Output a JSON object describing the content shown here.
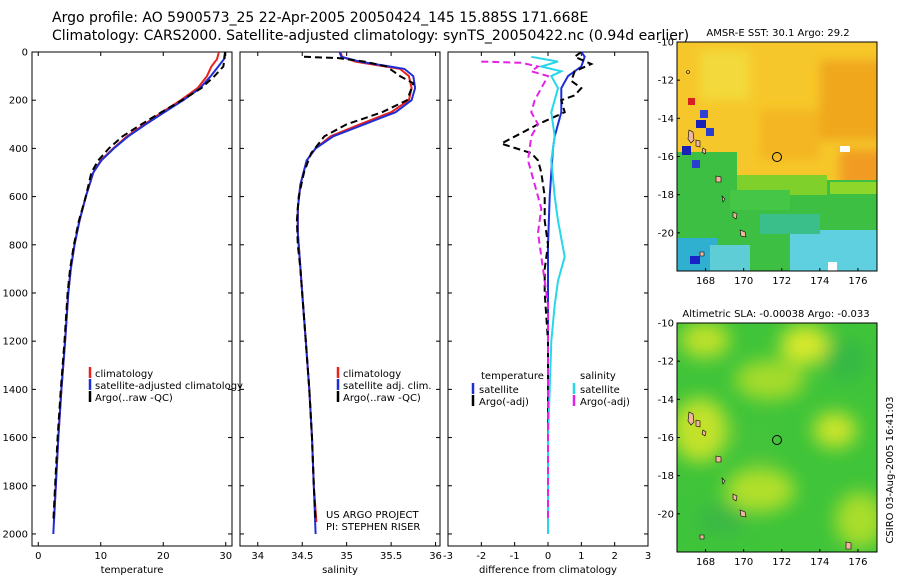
{
  "header": {
    "line1": "Argo profile: AO 5900573_25 22-Apr-2005 20050424_145 15.885S 171.668E",
    "line2": "Climatology: CARS2000. Satellite-adjusted climatology: synTS_20050422.nc (0.94d earlier)"
  },
  "footer": {
    "project": "US ARGO PROJECT",
    "pi": "PI: STEPHEN RISER",
    "stamp": "CSIRO 03-Aug-2005 16:41:03"
  },
  "colors": {
    "red": "#e8221c",
    "blue": "#1f2fd6",
    "black": "#000000",
    "cyan": "#27d7e9",
    "magenta": "#e421e6",
    "axis": "#000000"
  },
  "chart_data": [
    {
      "id": "temperature",
      "type": "line",
      "xlabel": "temperature",
      "ylabel": "",
      "xlim": [
        -1,
        31
      ],
      "ylim": [
        2050,
        0
      ],
      "xticks": [
        0,
        10,
        20,
        30
      ],
      "yticks": [
        0,
        200,
        400,
        600,
        800,
        1000,
        1200,
        1400,
        1600,
        1800,
        2000
      ],
      "legend": [
        "climatology",
        "satellite-adjusted climatology",
        "Argo(..raw -QC)"
      ],
      "series": [
        {
          "name": "climatology",
          "color": "red",
          "dash": false,
          "points": [
            [
              28.9,
              0
            ],
            [
              28.6,
              30
            ],
            [
              27.7,
              60
            ],
            [
              27.0,
              100
            ],
            [
              25.5,
              150
            ],
            [
              22.8,
              200
            ],
            [
              19.8,
              250
            ],
            [
              17.0,
              300
            ],
            [
              14.2,
              350
            ],
            [
              12.0,
              400
            ],
            [
              10.0,
              450
            ],
            [
              8.8,
              500
            ],
            [
              7.6,
              600
            ],
            [
              6.6,
              700
            ],
            [
              5.8,
              800
            ],
            [
              5.2,
              900
            ],
            [
              4.8,
              1000
            ],
            [
              4.3,
              1200
            ],
            [
              3.7,
              1400
            ],
            [
              3.2,
              1600
            ],
            [
              2.8,
              1800
            ],
            [
              2.5,
              1950
            ]
          ]
        },
        {
          "name": "satellite-adjusted climatology",
          "color": "blue",
          "dash": false,
          "points": [
            [
              29.9,
              0
            ],
            [
              29.7,
              30
            ],
            [
              28.8,
              60
            ],
            [
              27.6,
              100
            ],
            [
              25.9,
              150
            ],
            [
              23.2,
              200
            ],
            [
              20.2,
              250
            ],
            [
              17.2,
              300
            ],
            [
              14.4,
              350
            ],
            [
              12.1,
              400
            ],
            [
              10.1,
              450
            ],
            [
              8.8,
              500
            ],
            [
              7.6,
              600
            ],
            [
              6.6,
              700
            ],
            [
              5.8,
              800
            ],
            [
              5.2,
              900
            ],
            [
              4.8,
              1000
            ],
            [
              4.3,
              1200
            ],
            [
              3.7,
              1400
            ],
            [
              3.2,
              1600
            ],
            [
              2.8,
              1800
            ],
            [
              2.4,
              2000
            ]
          ]
        },
        {
          "name": "Argo(..raw -QC)",
          "color": "black",
          "dash": true,
          "points": [
            [
              29.9,
              0
            ],
            [
              29.8,
              30
            ],
            [
              29.6,
              60
            ],
            [
              28.2,
              100
            ],
            [
              26.1,
              150
            ],
            [
              23.0,
              200
            ],
            [
              19.7,
              250
            ],
            [
              16.5,
              300
            ],
            [
              13.5,
              350
            ],
            [
              11.3,
              400
            ],
            [
              9.6,
              450
            ],
            [
              8.5,
              500
            ],
            [
              7.6,
              600
            ],
            [
              6.5,
              700
            ],
            [
              5.7,
              800
            ],
            [
              5.1,
              900
            ],
            [
              4.7,
              1000
            ],
            [
              4.2,
              1200
            ],
            [
              3.6,
              1400
            ],
            [
              3.1,
              1600
            ],
            [
              2.7,
              1800
            ],
            [
              2.4,
              1950
            ]
          ]
        }
      ]
    },
    {
      "id": "salinity",
      "type": "line",
      "xlabel": "salinity",
      "ylabel": "",
      "xlim": [
        33.8,
        36.05
      ],
      "ylim": [
        2050,
        0
      ],
      "xticks": [
        34,
        34.5,
        35,
        35.5,
        36
      ],
      "yticks": [],
      "legend": [
        "climatology",
        "satellite adj. clim.",
        "Argo(..raw -QC)"
      ],
      "series": [
        {
          "name": "climatology",
          "color": "red",
          "dash": false,
          "points": [
            [
              34.93,
              0
            ],
            [
              34.95,
              20
            ],
            [
              35.1,
              40
            ],
            [
              35.6,
              70
            ],
            [
              35.7,
              100
            ],
            [
              35.73,
              150
            ],
            [
              35.7,
              200
            ],
            [
              35.5,
              250
            ],
            [
              35.15,
              300
            ],
            [
              34.82,
              350
            ],
            [
              34.65,
              400
            ],
            [
              34.55,
              450
            ],
            [
              34.48,
              550
            ],
            [
              34.45,
              650
            ],
            [
              34.45,
              750
            ],
            [
              34.47,
              850
            ],
            [
              34.5,
              1000
            ],
            [
              34.54,
              1200
            ],
            [
              34.58,
              1400
            ],
            [
              34.61,
              1600
            ],
            [
              34.63,
              1800
            ],
            [
              34.66,
              1950
            ]
          ]
        },
        {
          "name": "satellite adj. clim.",
          "color": "blue",
          "dash": false,
          "points": [
            [
              34.92,
              0
            ],
            [
              34.94,
              20
            ],
            [
              35.15,
              40
            ],
            [
              35.65,
              70
            ],
            [
              35.75,
              100
            ],
            [
              35.77,
              150
            ],
            [
              35.73,
              200
            ],
            [
              35.55,
              250
            ],
            [
              35.2,
              300
            ],
            [
              34.85,
              350
            ],
            [
              34.65,
              400
            ],
            [
              34.55,
              450
            ],
            [
              34.48,
              550
            ],
            [
              34.45,
              650
            ],
            [
              34.45,
              750
            ],
            [
              34.47,
              850
            ],
            [
              34.5,
              1000
            ],
            [
              34.54,
              1200
            ],
            [
              34.58,
              1400
            ],
            [
              34.61,
              1600
            ],
            [
              34.63,
              1800
            ],
            [
              34.65,
              2000
            ]
          ]
        },
        {
          "name": "Argo(..raw -QC)",
          "color": "black",
          "dash": true,
          "points": [
            [
              34.52,
              20
            ],
            [
              34.9,
              25
            ],
            [
              35.2,
              40
            ],
            [
              35.45,
              60
            ],
            [
              35.6,
              100
            ],
            [
              35.75,
              130
            ],
            [
              35.68,
              200
            ],
            [
              35.4,
              250
            ],
            [
              35.0,
              300
            ],
            [
              34.75,
              350
            ],
            [
              34.6,
              420
            ],
            [
              34.52,
              500
            ],
            [
              34.46,
              600
            ],
            [
              34.44,
              700
            ],
            [
              34.45,
              800
            ],
            [
              34.48,
              900
            ],
            [
              34.5,
              1000
            ],
            [
              34.54,
              1200
            ],
            [
              34.58,
              1400
            ],
            [
              34.61,
              1600
            ],
            [
              34.63,
              1800
            ],
            [
              34.65,
              1950
            ]
          ]
        }
      ]
    },
    {
      "id": "difference",
      "type": "line",
      "xlabel": "difference from climatology",
      "ylabel": "",
      "xlim": [
        -3,
        3
      ],
      "ylim": [
        2050,
        0
      ],
      "xticks": [
        -3,
        -2,
        -1,
        0,
        1,
        2,
        3
      ],
      "yticks": [],
      "legend_left_title": "temperature",
      "legend_right_title": "salinity",
      "legend_left": [
        "satellite",
        "Argo(-adj)"
      ],
      "legend_right": [
        "satellite",
        "Argo(-adj)"
      ],
      "series": [
        {
          "name": "temperature satellite",
          "color": "blue",
          "dash": false,
          "points": [
            [
              1.0,
              0
            ],
            [
              1.1,
              20
            ],
            [
              1.0,
              60
            ],
            [
              0.6,
              100
            ],
            [
              0.4,
              150
            ],
            [
              0.4,
              200
            ],
            [
              0.4,
              250
            ],
            [
              0.3,
              300
            ],
            [
              0.2,
              350
            ],
            [
              0.15,
              400
            ],
            [
              0.1,
              500
            ],
            [
              0.05,
              600
            ],
            [
              0.0,
              800
            ],
            [
              0.0,
              1000
            ],
            [
              0.0,
              1200
            ],
            [
              0.0,
              1400
            ],
            [
              0.0,
              1600
            ],
            [
              0.0,
              1800
            ],
            [
              0.0,
              2000
            ]
          ]
        },
        {
          "name": "temperature Argo(-adj)",
          "color": "black",
          "dash": true,
          "points": [
            [
              1.0,
              0
            ],
            [
              0.8,
              20
            ],
            [
              1.3,
              50
            ],
            [
              0.8,
              80
            ],
            [
              0.7,
              120
            ],
            [
              1.0,
              150
            ],
            [
              0.8,
              180
            ],
            [
              0.4,
              200
            ],
            [
              0.5,
              250
            ],
            [
              -0.3,
              300
            ],
            [
              -1.4,
              380
            ],
            [
              -0.5,
              420
            ],
            [
              -0.3,
              450
            ],
            [
              -0.2,
              500
            ],
            [
              -0.1,
              600
            ],
            [
              -0.1,
              700
            ],
            [
              0.0,
              800
            ],
            [
              -0.1,
              900
            ],
            [
              -0.1,
              1000
            ],
            [
              0.0,
              1200
            ],
            [
              0.0,
              1400
            ],
            [
              0.0,
              1600
            ],
            [
              0.0,
              1800
            ],
            [
              0.0,
              1950
            ]
          ]
        },
        {
          "name": "salinity satellite",
          "color": "cyan",
          "dash": false,
          "points": [
            [
              -0.5,
              20
            ],
            [
              0.3,
              40
            ],
            [
              -0.2,
              60
            ],
            [
              0.4,
              80
            ],
            [
              0.1,
              100
            ],
            [
              0.3,
              150
            ],
            [
              0.1,
              250
            ],
            [
              0.2,
              350
            ],
            [
              0.1,
              450
            ],
            [
              0.2,
              600
            ],
            [
              0.3,
              700
            ],
            [
              0.5,
              850
            ],
            [
              0.3,
              950
            ],
            [
              0.2,
              1050
            ],
            [
              0.1,
              1200
            ],
            [
              0.05,
              1400
            ],
            [
              0.0,
              1600
            ],
            [
              0.0,
              1800
            ],
            [
              0.0,
              2000
            ]
          ]
        },
        {
          "name": "salinity Argo(-adj)",
          "color": "magenta",
          "dash": true,
          "points": [
            [
              -2.0,
              40
            ],
            [
              -0.8,
              45
            ],
            [
              -0.3,
              60
            ],
            [
              -0.5,
              80
            ],
            [
              0.0,
              100
            ],
            [
              -0.2,
              150
            ],
            [
              -0.4,
              200
            ],
            [
              -0.5,
              250
            ],
            [
              -0.3,
              300
            ],
            [
              -0.5,
              350
            ],
            [
              -0.6,
              450
            ],
            [
              -0.4,
              550
            ],
            [
              -0.2,
              650
            ],
            [
              -0.3,
              750
            ],
            [
              -0.2,
              850
            ],
            [
              -0.1,
              950
            ],
            [
              0.0,
              1050
            ],
            [
              0.0,
              1200
            ],
            [
              0.0,
              1400
            ],
            [
              0.0,
              1600
            ],
            [
              0.0,
              1800
            ],
            [
              0.0,
              1950
            ]
          ]
        }
      ]
    },
    {
      "id": "sst_map",
      "type": "heatmap",
      "title": "AMSR-E SST: 30.1  Argo: 29.2",
      "xlim": [
        166.5,
        177
      ],
      "ylim": [
        -22,
        -10
      ],
      "xticks": [
        168,
        170,
        172,
        174,
        176
      ],
      "yticks": [
        -10,
        -12,
        -14,
        -16,
        -18,
        -20
      ],
      "argo_position": [
        171.668,
        -15.885
      ]
    },
    {
      "id": "sla_map",
      "type": "heatmap",
      "title": "Altimetric SLA: -0.00038  Argo: -0.033",
      "xlim": [
        166.5,
        177
      ],
      "ylim": [
        -22,
        -10
      ],
      "xticks": [
        168,
        170,
        172,
        174,
        176
      ],
      "yticks": [
        -10,
        -12,
        -14,
        -16,
        -18,
        -20
      ],
      "argo_position": [
        171.668,
        -15.885
      ]
    }
  ]
}
